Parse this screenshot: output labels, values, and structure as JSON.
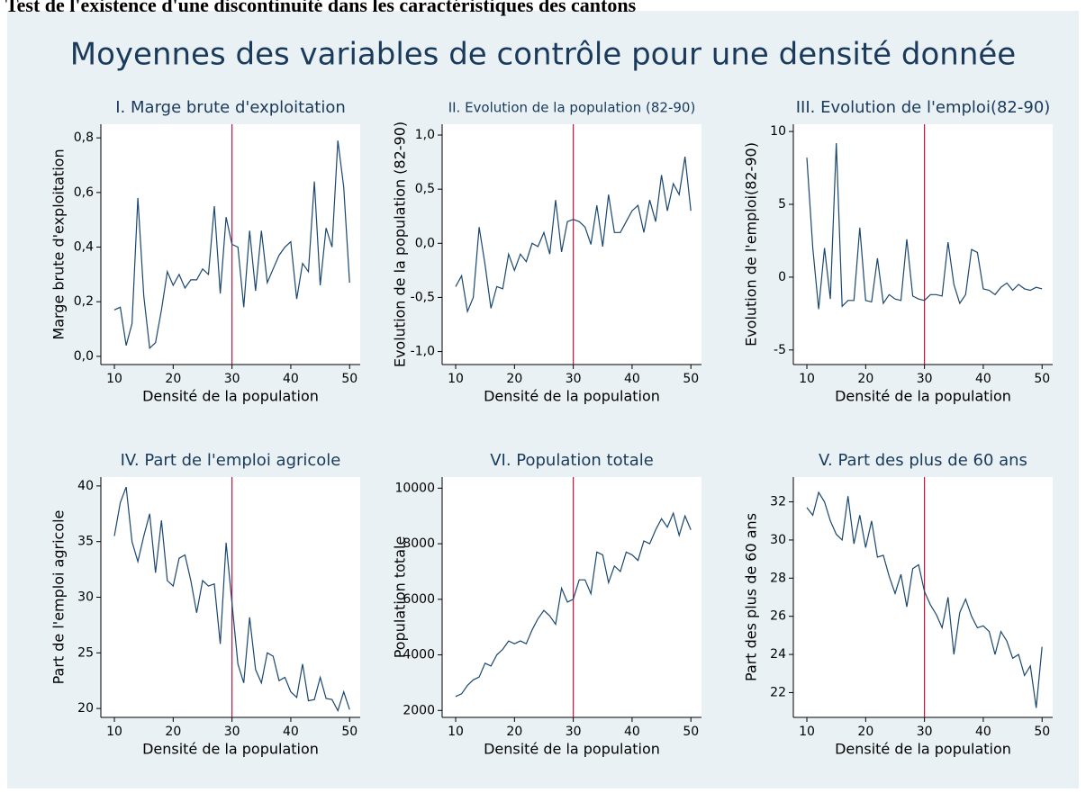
{
  "header": "Test de l'existence d'une discontinuité dans les caractéristiques des cantons",
  "title": "Moyennes des variables de contrôle pour une densité donnée",
  "chart_data": [
    {
      "type": "line",
      "title": "I. Marge brute d'exploitation",
      "xlabel": "Densité de la population",
      "ylabel": "Marge brute d'exploitation",
      "x": [
        10,
        11,
        12,
        13,
        14,
        15,
        16,
        17,
        18,
        19,
        20,
        21,
        22,
        23,
        24,
        25,
        26,
        27,
        28,
        29,
        30,
        31,
        32,
        33,
        34,
        35,
        36,
        37,
        38,
        39,
        40,
        41,
        42,
        43,
        44,
        45,
        46,
        47,
        48,
        49,
        50
      ],
      "values": [
        0.17,
        0.18,
        0.04,
        0.12,
        0.58,
        0.22,
        0.03,
        0.05,
        0.17,
        0.31,
        0.26,
        0.3,
        0.25,
        0.28,
        0.28,
        0.32,
        0.3,
        0.55,
        0.23,
        0.51,
        0.41,
        0.4,
        0.18,
        0.46,
        0.24,
        0.46,
        0.27,
        0.32,
        0.37,
        0.4,
        0.42,
        0.21,
        0.34,
        0.31,
        0.64,
        0.26,
        0.47,
        0.4,
        0.79,
        0.62,
        0.27
      ],
      "color": "#1a476f",
      "vline": 30,
      "vline_color": "#c0143c",
      "xlim": [
        7.7,
        51.8
      ],
      "xticks": [
        10,
        20,
        30,
        40,
        50
      ],
      "ylim": [
        -0.03,
        0.85
      ],
      "yticks": [
        {
          "value": 0,
          "label": "0,0"
        },
        {
          "value": 0.2,
          "label": "0,2"
        },
        {
          "value": 0.4,
          "label": "0,4"
        },
        {
          "value": 0.6,
          "label": "0,6"
        },
        {
          "value": 0.8,
          "label": "0,8"
        }
      ]
    },
    {
      "type": "line",
      "title": "II. Evolution de la population (82-90)",
      "xlabel": "Densité de la population",
      "ylabel": "Evolution de la population (82-90)",
      "x": [
        10,
        11,
        12,
        13,
        14,
        15,
        16,
        17,
        18,
        19,
        20,
        21,
        22,
        23,
        24,
        25,
        26,
        27,
        28,
        29,
        30,
        31,
        32,
        33,
        34,
        35,
        36,
        37,
        38,
        39,
        40,
        41,
        42,
        43,
        44,
        45,
        46,
        47,
        48,
        49,
        50
      ],
      "values": [
        -0.4,
        -0.3,
        -0.63,
        -0.5,
        0.15,
        -0.2,
        -0.6,
        -0.4,
        -0.42,
        -0.1,
        -0.25,
        -0.1,
        -0.17,
        0,
        -0.03,
        0.1,
        -0.1,
        0.4,
        -0.08,
        0.2,
        0.22,
        0.2,
        0.15,
        -0.01,
        0.35,
        -0.03,
        0.45,
        0.1,
        0.1,
        0.2,
        0.3,
        0.35,
        0.1,
        0.4,
        0.2,
        0.63,
        0.3,
        0.55,
        0.45,
        0.8,
        0.3
      ],
      "color": "#1a476f",
      "vline": 30,
      "vline_color": "#c0143c",
      "xlim": [
        7.7,
        51.8
      ],
      "xticks": [
        10,
        20,
        30,
        40,
        50
      ],
      "ylim": [
        -1.12,
        1.1
      ],
      "yticks": [
        {
          "value": -1,
          "label": "-1,0"
        },
        {
          "value": -0.5,
          "label": "-0,5"
        },
        {
          "value": 0,
          "label": "0,0"
        },
        {
          "value": 0.5,
          "label": "0,5"
        },
        {
          "value": 1,
          "label": "1,0"
        }
      ]
    },
    {
      "type": "line",
      "title": "III. Evolution de l'emploi(82-90)",
      "xlabel": "Densité de la population",
      "ylabel": "Evolution de l'emploi(82-90)",
      "x": [
        10,
        11,
        12,
        13,
        14,
        15,
        16,
        17,
        18,
        19,
        20,
        21,
        22,
        23,
        24,
        25,
        26,
        27,
        28,
        29,
        30,
        31,
        32,
        33,
        34,
        35,
        36,
        37,
        38,
        39,
        40,
        41,
        42,
        43,
        44,
        45,
        46,
        47,
        48,
        49,
        50
      ],
      "values": [
        8.2,
        2,
        -2.2,
        2,
        -1.5,
        9.2,
        -2,
        -1.6,
        -1.6,
        3.4,
        -1.6,
        -1.7,
        1.3,
        -1.8,
        -1.2,
        -1.5,
        -1.6,
        2.6,
        -1.3,
        -1.5,
        -1.6,
        -1.2,
        -1.2,
        -1.3,
        2.4,
        -0.5,
        -1.8,
        -1.2,
        1.9,
        1.7,
        -0.8,
        -0.9,
        -1.2,
        -0.7,
        -0.4,
        -0.9,
        -0.5,
        -0.8,
        -0.9,
        -0.7,
        -0.8
      ],
      "color": "#1a476f",
      "vline": 30,
      "vline_color": "#c0143c",
      "xlim": [
        7.7,
        51.8
      ],
      "xticks": [
        10,
        20,
        30,
        40,
        50
      ],
      "ylim": [
        -6,
        10.5
      ],
      "yticks": [
        -5,
        0,
        5,
        10
      ]
    },
    {
      "type": "line",
      "title": "IV. Part de l'emploi agricole",
      "xlabel": "Densité de la population",
      "ylabel": "Part de l'emploi agricole",
      "x": [
        10,
        11,
        12,
        13,
        14,
        15,
        16,
        17,
        18,
        19,
        20,
        21,
        22,
        23,
        24,
        25,
        26,
        27,
        28,
        29,
        30,
        31,
        32,
        33,
        34,
        35,
        36,
        37,
        38,
        39,
        40,
        41,
        42,
        43,
        44,
        45,
        46,
        47,
        48,
        49,
        50
      ],
      "values": [
        35.5,
        38.5,
        39.9,
        35,
        33.2,
        35.5,
        37.5,
        32.2,
        36.9,
        31.5,
        31,
        33.5,
        33.8,
        31.5,
        28.6,
        31.5,
        31,
        31.2,
        25.8,
        34.9,
        29.5,
        24,
        22.3,
        28.2,
        23.5,
        22.3,
        25,
        24.7,
        22.5,
        22.8,
        21.5,
        21,
        24,
        20.7,
        20.8,
        22.8,
        20.9,
        20.8,
        19.8,
        21.5,
        19.9
      ],
      "color": "#1a476f",
      "vline": 30,
      "vline_color": "#c0143c",
      "xlim": [
        7.7,
        51.8
      ],
      "xticks": [
        10,
        20,
        30,
        40,
        50
      ],
      "ylim": [
        19.2,
        40.8
      ],
      "yticks": [
        20,
        25,
        30,
        35,
        40
      ]
    },
    {
      "type": "line",
      "title": "VI. Population totale",
      "xlabel": "Densité de la population",
      "ylabel": "Population totale",
      "x": [
        10,
        11,
        12,
        13,
        14,
        15,
        16,
        17,
        18,
        19,
        20,
        21,
        22,
        23,
        24,
        25,
        26,
        27,
        28,
        29,
        30,
        31,
        32,
        33,
        34,
        35,
        36,
        37,
        38,
        39,
        40,
        41,
        42,
        43,
        44,
        45,
        46,
        47,
        48,
        49,
        50
      ],
      "values": [
        2500,
        2600,
        2900,
        3100,
        3200,
        3700,
        3600,
        4000,
        4200,
        4500,
        4400,
        4500,
        4400,
        4900,
        5300,
        5600,
        5400,
        5100,
        6400,
        5900,
        6000,
        6700,
        6700,
        6200,
        7700,
        7600,
        6600,
        7200,
        7000,
        7700,
        7600,
        7400,
        8100,
        8000,
        8500,
        8900,
        8600,
        9100,
        8300,
        9000,
        8500
      ],
      "color": "#1a476f",
      "vline": 30,
      "vline_color": "#c0143c",
      "xlim": [
        7.7,
        51.8
      ],
      "xticks": [
        10,
        20,
        30,
        40,
        50
      ],
      "ylim": [
        1750,
        10400
      ],
      "yticks": [
        2000,
        4000,
        6000,
        8000,
        10000
      ]
    },
    {
      "type": "line",
      "title": "V. Part des plus de 60 ans",
      "xlabel": "Densité de la population",
      "ylabel": "Part des plus de 60 ans",
      "x": [
        10,
        11,
        12,
        13,
        14,
        15,
        16,
        17,
        18,
        19,
        20,
        21,
        22,
        23,
        24,
        25,
        26,
        27,
        28,
        29,
        30,
        31,
        32,
        33,
        34,
        35,
        36,
        37,
        38,
        39,
        40,
        41,
        42,
        43,
        44,
        45,
        46,
        47,
        48,
        49,
        50
      ],
      "values": [
        31.7,
        31.3,
        32.5,
        32,
        31,
        30.3,
        30,
        32.3,
        29.8,
        31.3,
        29.6,
        31,
        29.1,
        29.2,
        28.1,
        27.2,
        28.2,
        26.5,
        28.5,
        28.7,
        27.3,
        26.6,
        26.1,
        25.4,
        27,
        24,
        26.2,
        26.9,
        26,
        25.4,
        25.5,
        25.2,
        24,
        25.2,
        24.7,
        23.8,
        24,
        22.9,
        23.4,
        21.2,
        24.4
      ],
      "color": "#1a476f",
      "vline": 30,
      "vline_color": "#c0143c",
      "xlim": [
        7.7,
        51.8
      ],
      "xticks": [
        10,
        20,
        30,
        40,
        50
      ],
      "ylim": [
        20.7,
        33.3
      ],
      "yticks": [
        22,
        24,
        26,
        28,
        30,
        32
      ]
    }
  ]
}
